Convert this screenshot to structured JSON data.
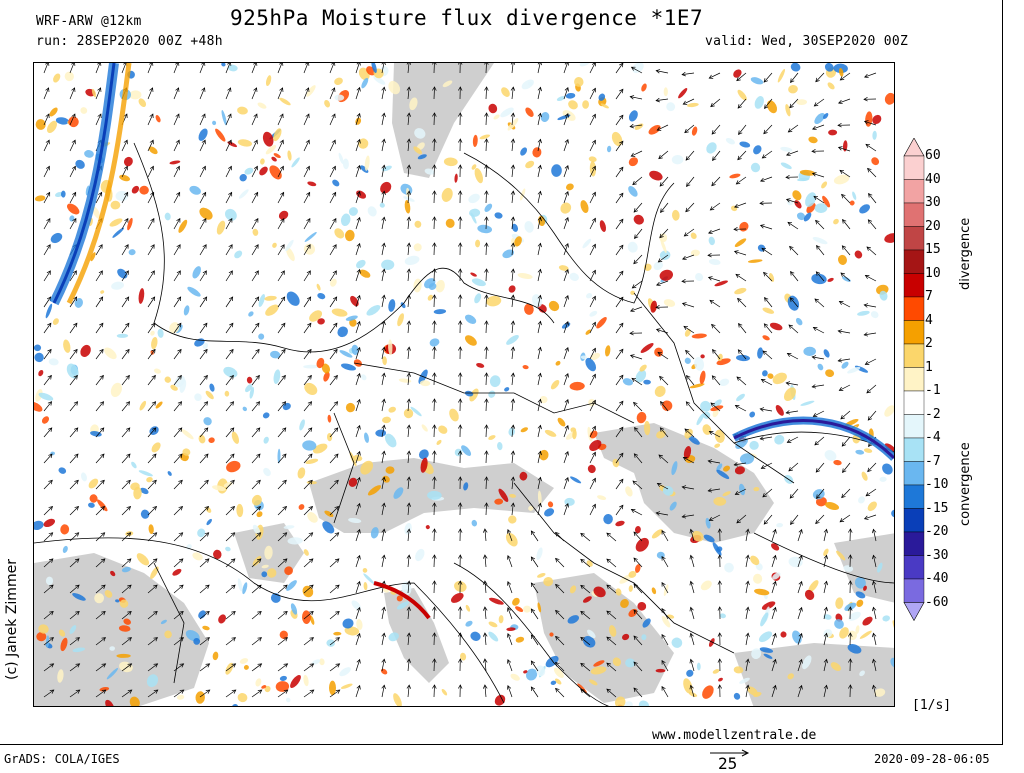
{
  "header": {
    "title": "925hPa Moisture flux divergence *1E7",
    "model": "WRF-ARW @12km",
    "run": "run: 28SEP2020 00Z +48h",
    "valid": "valid: Wed, 30SEP2020 00Z"
  },
  "colorbar": {
    "levels": [
      "60",
      "40",
      "30",
      "20",
      "15",
      "10",
      "7",
      "4",
      "2",
      "1",
      "-1",
      "-2",
      "-4",
      "-7",
      "-10",
      "-15",
      "-20",
      "-30",
      "-40",
      "-60"
    ],
    "colors": [
      "#fbd0d0",
      "#f2a3a3",
      "#e07272",
      "#c04545",
      "#a51515",
      "#c80000",
      "#ff4a00",
      "#f5a000",
      "#fbd66b",
      "#fff3c6",
      "#ffffff",
      "#e4f6fb",
      "#a8e2f5",
      "#6ab7f0",
      "#1e78d8",
      "#0a3fb8",
      "#2a1a9a",
      "#4a3ac4",
      "#7a6ae0",
      "#b0a6f5"
    ],
    "divergence_label": "divergence",
    "convergence_label": "convergence",
    "units": "[1/s]"
  },
  "map": {
    "land_color": "#cfcfcf",
    "border_color": "#000000"
  },
  "reference_vector": {
    "value": "25"
  },
  "footer": {
    "software": "GrADS: COLA/IGES",
    "website": "www.modellzentrale.de",
    "timestamp": "2020-09-28-06:05",
    "copyright": "(c) Janek Zimmer"
  }
}
